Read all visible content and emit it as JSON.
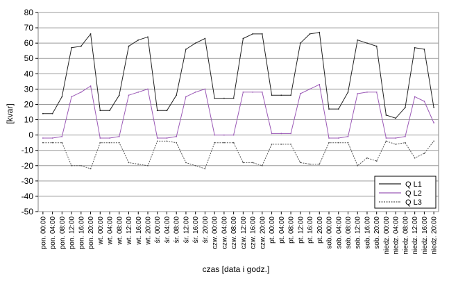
{
  "chart_data": {
    "type": "line",
    "xlabel": "czas [data i godz.]",
    "ylabel": "[kvar]",
    "ylim": [
      -50,
      80
    ],
    "yticks": [
      -50,
      -40,
      -30,
      -20,
      -10,
      0,
      10,
      20,
      30,
      40,
      50,
      60,
      70,
      80
    ],
    "grid": "horizontal",
    "legend_position": "bottom-right",
    "x_tick_labels": [
      "pon. 00:00",
      "pon. 04:00",
      "pon. 08:00",
      "pon. 12:00",
      "pon. 16:00",
      "pon. 20:00",
      "wt. 00:00",
      "wt. 04:00",
      "wt. 08:00",
      "wt. 12:00",
      "wt. 16:00",
      "wt. 20:00",
      "śr. 00:00",
      "śr. 04:00",
      "śr. 08:00",
      "śr. 12:00",
      "śr. 16:00",
      "śr. 20:00",
      "czw. 00:00",
      "czw. 04:00",
      "czw. 08:00",
      "czw. 12:00",
      "czw. 16:00",
      "czw. 20:00",
      "pt. 00:00",
      "pt. 04:00",
      "pt. 08:00",
      "pt. 12:00",
      "pt. 16:00",
      "pt. 20:00",
      "sob. 00:00",
      "sob. 04:00",
      "sob. 08:00",
      "sob. 12:00",
      "sob. 16:00",
      "sob. 20:00",
      "niedz. 00:00",
      "niedz. 04:00",
      "niedz. 08:00",
      "niedz. 12:00",
      "niedz. 16:00",
      "niedz. 20:00"
    ],
    "series": [
      {
        "name": "Q L1",
        "color": "#222222",
        "values": [
          14,
          14,
          25,
          57,
          58,
          66,
          16,
          16,
          26,
          58,
          62,
          64,
          16,
          16,
          26,
          56,
          60,
          63,
          24,
          24,
          24,
          63,
          66,
          66,
          26,
          26,
          26,
          60,
          66,
          67,
          17,
          17,
          28,
          62,
          60,
          58,
          13,
          11,
          18,
          57,
          56,
          18
        ]
      },
      {
        "name": "Q L2",
        "color": "#9b59b6",
        "values": [
          -2,
          -2,
          -1,
          25,
          28,
          32,
          -2,
          -2,
          -1,
          26,
          28,
          30,
          -2,
          -2,
          -1,
          25,
          28,
          30,
          0,
          0,
          0,
          28,
          28,
          28,
          1,
          1,
          1,
          27,
          30,
          33,
          -2,
          -2,
          -1,
          27,
          28,
          28,
          -2,
          -2,
          -1,
          25,
          22,
          8
        ]
      },
      {
        "name": "Q L3",
        "color": "#555555",
        "values": [
          -5,
          -5,
          -5,
          -20,
          -20,
          -22,
          -5,
          -5,
          -5,
          -18,
          -19,
          -20,
          -4,
          -4,
          -5,
          -18,
          -20,
          -22,
          -5,
          -5,
          -5,
          -18,
          -18,
          -20,
          -6,
          -6,
          -6,
          -18,
          -19,
          -19,
          -5,
          -5,
          -5,
          -20,
          -15,
          -17,
          -4,
          -6,
          -5,
          -15,
          -12,
          -4
        ]
      }
    ]
  }
}
